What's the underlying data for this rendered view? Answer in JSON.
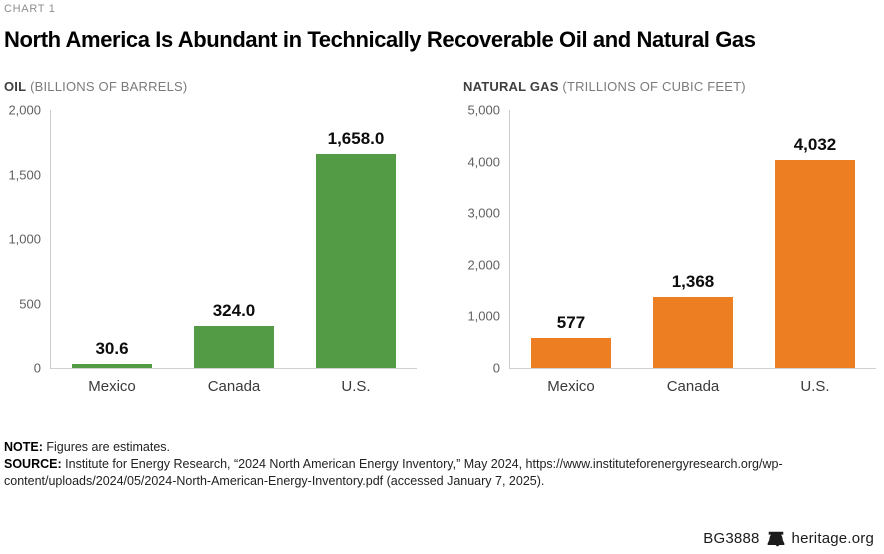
{
  "header": {
    "kicker": "CHART 1",
    "title": "North America Is Abundant in Technically Recoverable Oil and Natural Gas"
  },
  "chart_data": [
    {
      "type": "bar",
      "title": "OIL",
      "units": "(BILLIONS OF BARRELS)",
      "categories": [
        "Mexico",
        "Canada",
        "U.S."
      ],
      "values": [
        30.6,
        324.0,
        1658.0
      ],
      "value_labels": [
        "30.6",
        "324.0",
        "1,658.0"
      ],
      "ylim": [
        0,
        2000
      ],
      "yticks": [
        0,
        500,
        1000,
        1500,
        2000
      ],
      "ytick_labels": [
        "0",
        "500",
        "1,000",
        "1,500",
        "2,000"
      ],
      "bar_color": "#539b44",
      "grid": false,
      "legend": "none"
    },
    {
      "type": "bar",
      "title": "NATURAL GAS",
      "units": "(TRILLIONS OF CUBIC FEET)",
      "categories": [
        "Mexico",
        "Canada",
        "U.S."
      ],
      "values": [
        577,
        1368,
        4032
      ],
      "value_labels": [
        "577",
        "1,368",
        "4,032"
      ],
      "ylim": [
        0,
        5000
      ],
      "yticks": [
        0,
        1000,
        2000,
        3000,
        4000,
        5000
      ],
      "ytick_labels": [
        "0",
        "1,000",
        "2,000",
        "3,000",
        "4,000",
        "5,000"
      ],
      "bar_color": "#ee7e22",
      "grid": false,
      "legend": "none"
    }
  ],
  "note": {
    "label": "NOTE:",
    "text": "Figures are estimates."
  },
  "source": {
    "label": "SOURCE:",
    "text": "Institute for Energy Research, “2024 North American Energy Inventory,” May 2024, https://www.instituteforenergyresearch.org/wp-content/uploads/2024/05/2024-North-American-Energy-Inventory.pdf (accessed January 7, 2025)."
  },
  "footer": {
    "report_id": "BG3888",
    "site": "heritage.org",
    "icon": "liberty-bell-icon"
  },
  "colors": {
    "oil_bar": "#539b44",
    "gas_bar": "#ee7e22",
    "axis_line": "#cccccc"
  }
}
